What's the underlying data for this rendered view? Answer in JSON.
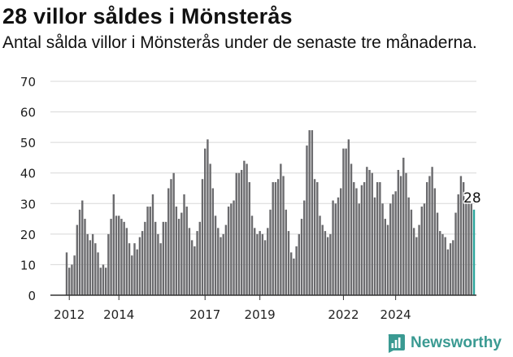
{
  "title": "28 villor såldes i Mönsterås",
  "subtitle": "Antal sålda villor i Mönsterås under de senaste tre månaderna.",
  "brand": {
    "name": "Newsworthy",
    "icon": "newsworthy-logo-icon"
  },
  "colors": {
    "bar": "#6b6b6e",
    "highlight": "#2aa39a",
    "grid": "#d8d8d8",
    "axis": "#333333",
    "brand": "#3a9a92"
  },
  "chart_data": {
    "type": "bar",
    "title": "28 villor såldes i Mönsterås",
    "xlabel": "",
    "ylabel": "",
    "ylim": [
      0,
      70
    ],
    "yticks": [
      0,
      10,
      20,
      30,
      40,
      50,
      60,
      70
    ],
    "xtick_labels": [
      "2012",
      "2014",
      "2017",
      "2019",
      "2022",
      "2024"
    ],
    "grid": true,
    "highlight_label": "28",
    "values": [
      14,
      9,
      10,
      13,
      23,
      28,
      31,
      25,
      20,
      18,
      20,
      17,
      14,
      9,
      10,
      9,
      20,
      25,
      33,
      26,
      26,
      25,
      24,
      22,
      17,
      13,
      17,
      15,
      19,
      21,
      24,
      29,
      29,
      33,
      24,
      20,
      17,
      24,
      24,
      35,
      38,
      40,
      29,
      25,
      27,
      33,
      29,
      22,
      18,
      16,
      21,
      24,
      38,
      48,
      51,
      43,
      35,
      26,
      22,
      19,
      20,
      23,
      29,
      30,
      31,
      40,
      40,
      41,
      44,
      43,
      37,
      26,
      22,
      20,
      21,
      20,
      18,
      22,
      28,
      37,
      37,
      38,
      43,
      39,
      28,
      21,
      14,
      12,
      16,
      20,
      25,
      31,
      49,
      54,
      54,
      38,
      37,
      26,
      23,
      21,
      19,
      20,
      31,
      30,
      32,
      35,
      48,
      48,
      51,
      43,
      37,
      35,
      30,
      36,
      37,
      42,
      41,
      40,
      32,
      37,
      37,
      30,
      25,
      23,
      30,
      33,
      34,
      41,
      39,
      45,
      40,
      32,
      28,
      22,
      19,
      23,
      29,
      30,
      37,
      39,
      42,
      35,
      27,
      21,
      20,
      19,
      15,
      17,
      18,
      27,
      33,
      39,
      37,
      31,
      31,
      30,
      28
    ]
  }
}
